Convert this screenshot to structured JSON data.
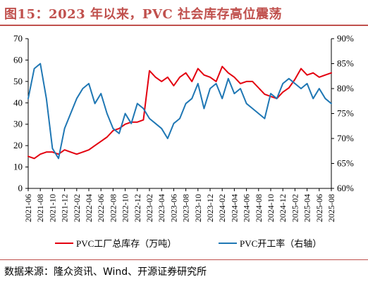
{
  "title": "图15：2023 年以来，PVC 社会库存高位震荡",
  "source": "数据来源：隆众资讯、Wind、开源证券研究所",
  "colors": {
    "title": "#c0504d",
    "series1": "#e3000f",
    "series2": "#1f77b4"
  },
  "chart_data": {
    "type": "line",
    "title": "",
    "x_ticks": [
      "2021-06",
      "2021-08",
      "2021-10",
      "2021-12",
      "2022-02",
      "2022-04",
      "2022-06",
      "2022-08",
      "2022-10",
      "2022-12",
      "2023-02",
      "2023-04",
      "2023-06",
      "2023-08",
      "2023-10",
      "2023-12",
      "2024-02",
      "2024-04",
      "2024-06",
      "2024-08",
      "2024-10",
      "2024-12",
      "2025-02",
      "2025-04",
      "2025-06",
      "2025-08"
    ],
    "y_left": {
      "min": 0,
      "max": 70,
      "ticks": [
        0,
        10,
        20,
        30,
        40,
        50,
        60,
        70
      ]
    },
    "y_right": {
      "min": 60,
      "max": 90,
      "ticks": [
        "60%",
        "65%",
        "70%",
        "75%",
        "80%",
        "85%",
        "90%"
      ]
    },
    "grid": false,
    "legend_position": "bottom",
    "series": [
      {
        "name": "PVC工厂总库存（万吨）",
        "axis": "left",
        "points": [
          [
            "2021-06",
            15
          ],
          [
            "2021-07",
            14
          ],
          [
            "2021-08",
            16
          ],
          [
            "2021-09",
            17
          ],
          [
            "2021-10",
            17
          ],
          [
            "2021-11",
            16
          ],
          [
            "2021-12",
            18
          ],
          [
            "2022-01",
            17
          ],
          [
            "2022-02",
            16
          ],
          [
            "2022-03",
            17
          ],
          [
            "2022-04",
            18
          ],
          [
            "2022-05",
            20
          ],
          [
            "2022-06",
            22
          ],
          [
            "2022-07",
            24
          ],
          [
            "2022-08",
            27
          ],
          [
            "2022-09",
            28
          ],
          [
            "2022-10",
            30
          ],
          [
            "2022-11",
            31
          ],
          [
            "2022-12",
            31
          ],
          [
            "2023-01",
            32
          ],
          [
            "2023-02",
            55
          ],
          [
            "2023-03",
            52
          ],
          [
            "2023-04",
            50
          ],
          [
            "2023-05",
            52
          ],
          [
            "2023-06",
            48
          ],
          [
            "2023-07",
            52
          ],
          [
            "2023-08",
            54
          ],
          [
            "2023-09",
            50
          ],
          [
            "2023-10",
            56
          ],
          [
            "2023-11",
            53
          ],
          [
            "2023-12",
            52
          ],
          [
            "2024-01",
            50
          ],
          [
            "2024-02",
            57
          ],
          [
            "2024-03",
            54
          ],
          [
            "2024-04",
            52
          ],
          [
            "2024-05",
            49
          ],
          [
            "2024-06",
            50
          ],
          [
            "2024-07",
            50
          ],
          [
            "2024-08",
            47
          ],
          [
            "2024-09",
            44
          ],
          [
            "2024-10",
            43
          ],
          [
            "2024-11",
            42
          ],
          [
            "2024-12",
            45
          ],
          [
            "2025-01",
            47
          ],
          [
            "2025-02",
            51
          ],
          [
            "2025-03",
            56
          ],
          [
            "2025-04",
            53
          ],
          [
            "2025-05",
            54
          ],
          [
            "2025-06",
            52
          ],
          [
            "2025-07",
            53
          ],
          [
            "2025-08",
            54
          ]
        ]
      },
      {
        "name": "PVC开工率（右轴）",
        "axis": "right",
        "points": [
          [
            "2021-06",
            78
          ],
          [
            "2021-07",
            84
          ],
          [
            "2021-08",
            85
          ],
          [
            "2021-09",
            78
          ],
          [
            "2021-10",
            68
          ],
          [
            "2021-11",
            66
          ],
          [
            "2021-12",
            72
          ],
          [
            "2022-01",
            75
          ],
          [
            "2022-02",
            78
          ],
          [
            "2022-03",
            80
          ],
          [
            "2022-04",
            81
          ],
          [
            "2022-05",
            77
          ],
          [
            "2022-06",
            79
          ],
          [
            "2022-07",
            75
          ],
          [
            "2022-08",
            72
          ],
          [
            "2022-09",
            71
          ],
          [
            "2022-10",
            75
          ],
          [
            "2022-11",
            73
          ],
          [
            "2022-12",
            77
          ],
          [
            "2023-01",
            76
          ],
          [
            "2023-02",
            74
          ],
          [
            "2023-03",
            73
          ],
          [
            "2023-04",
            72
          ],
          [
            "2023-05",
            70
          ],
          [
            "2023-06",
            73
          ],
          [
            "2023-07",
            74
          ],
          [
            "2023-08",
            77
          ],
          [
            "2023-09",
            78
          ],
          [
            "2023-10",
            81
          ],
          [
            "2023-11",
            76
          ],
          [
            "2023-12",
            80
          ],
          [
            "2024-01",
            81
          ],
          [
            "2024-02",
            78
          ],
          [
            "2024-03",
            82
          ],
          [
            "2024-04",
            79
          ],
          [
            "2024-05",
            80
          ],
          [
            "2024-06",
            77
          ],
          [
            "2024-07",
            76
          ],
          [
            "2024-08",
            75
          ],
          [
            "2024-09",
            74
          ],
          [
            "2024-10",
            79
          ],
          [
            "2024-11",
            78
          ],
          [
            "2024-12",
            81
          ],
          [
            "2025-01",
            82
          ],
          [
            "2025-02",
            81
          ],
          [
            "2025-03",
            80
          ],
          [
            "2025-04",
            81
          ],
          [
            "2025-05",
            78
          ],
          [
            "2025-06",
            80
          ],
          [
            "2025-07",
            78
          ],
          [
            "2025-08",
            77
          ]
        ]
      }
    ]
  }
}
